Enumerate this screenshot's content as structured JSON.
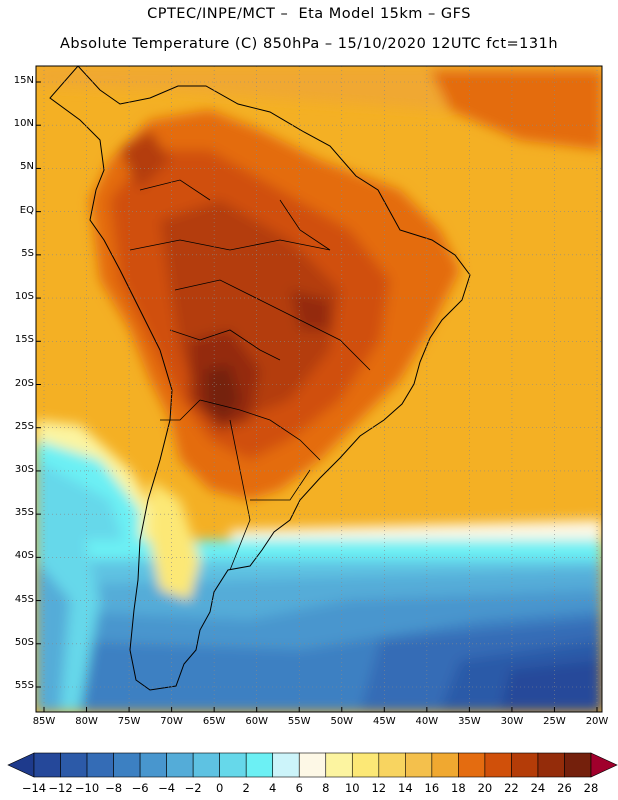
{
  "header": {
    "line1": "CPTEC/INPE/MCT –  Eta Model 15km – GFS",
    "line2": "Absolute Temperature (C) 850hPa – 15/10/2020 12UTC fct=131h"
  },
  "map": {
    "lat_labels": [
      "15N",
      "10N",
      "5N",
      "EQ",
      "5S",
      "10S",
      "15S",
      "20S",
      "25S",
      "30S",
      "35S",
      "40S",
      "45S",
      "50S",
      "55S"
    ],
    "lon_labels": [
      "85W",
      "80W",
      "75W",
      "70W",
      "65W",
      "60W",
      "55W",
      "50W",
      "45W",
      "40W",
      "35W",
      "30W",
      "25W",
      "20W"
    ],
    "lat_values": [
      15,
      10,
      5,
      0,
      -5,
      -10,
      -15,
      -20,
      -25,
      -30,
      -35,
      -40,
      -45,
      -50,
      -55
    ],
    "lon_values": [
      -85,
      -80,
      -75,
      -70,
      -65,
      -60,
      -55,
      -50,
      -45,
      -40,
      -35,
      -30,
      -25,
      -20
    ]
  },
  "colorbar": {
    "labels": [
      "-14",
      "-12",
      "-10",
      "-8",
      "-6",
      "-4",
      "-2",
      "0",
      "2",
      "4",
      "6",
      "8",
      "10",
      "12",
      "14",
      "16",
      "18",
      "20",
      "22",
      "24",
      "26",
      "28"
    ],
    "colors": [
      "#1e3a8c",
      "#25489a",
      "#2c5aa8",
      "#346cb6",
      "#3c80c2",
      "#4896ce",
      "#54acd8",
      "#5ec2e2",
      "#66d8ea",
      "#6cf0f4",
      "#ccf4fa",
      "#fdf8e6",
      "#fcf4a0",
      "#fce876",
      "#f8d460",
      "#f4c04c",
      "#f0a830",
      "#e46c10",
      "#d0500a",
      "#b43c08",
      "#942c0a",
      "#74200c",
      "#a0002c"
    ]
  }
}
